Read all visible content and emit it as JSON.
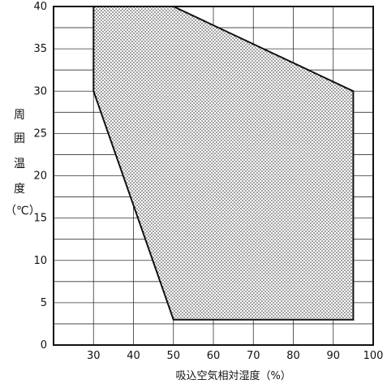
{
  "chart_data": {
    "type": "area",
    "xlabel": "吸込空気相対湿度（%）",
    "ylabel": "周囲温度（℃）",
    "ylabel_chars": [
      "周",
      "囲",
      "温",
      "度",
      "（℃）"
    ],
    "xlim": [
      20,
      100
    ],
    "ylim": [
      0,
      40
    ],
    "x_ticks": [
      30,
      40,
      50,
      60,
      70,
      80,
      90,
      100
    ],
    "y_ticks": [
      0,
      5,
      10,
      15,
      20,
      25,
      30,
      35,
      40
    ],
    "x_tick_labels": [
      "30",
      "40",
      "50",
      "60",
      "70",
      "80",
      "90",
      "100"
    ],
    "y_tick_labels": [
      "0",
      "5",
      "10",
      "15",
      "20",
      "25",
      "30",
      "35",
      "40"
    ],
    "grid": true,
    "series": [
      {
        "points": [
          [
            30,
            40
          ],
          [
            50,
            40
          ],
          [
            95,
            30
          ],
          [
            95,
            3
          ],
          [
            50,
            3
          ],
          [
            30,
            30
          ]
        ],
        "fill": "dotted",
        "color": "#111111"
      }
    ]
  }
}
